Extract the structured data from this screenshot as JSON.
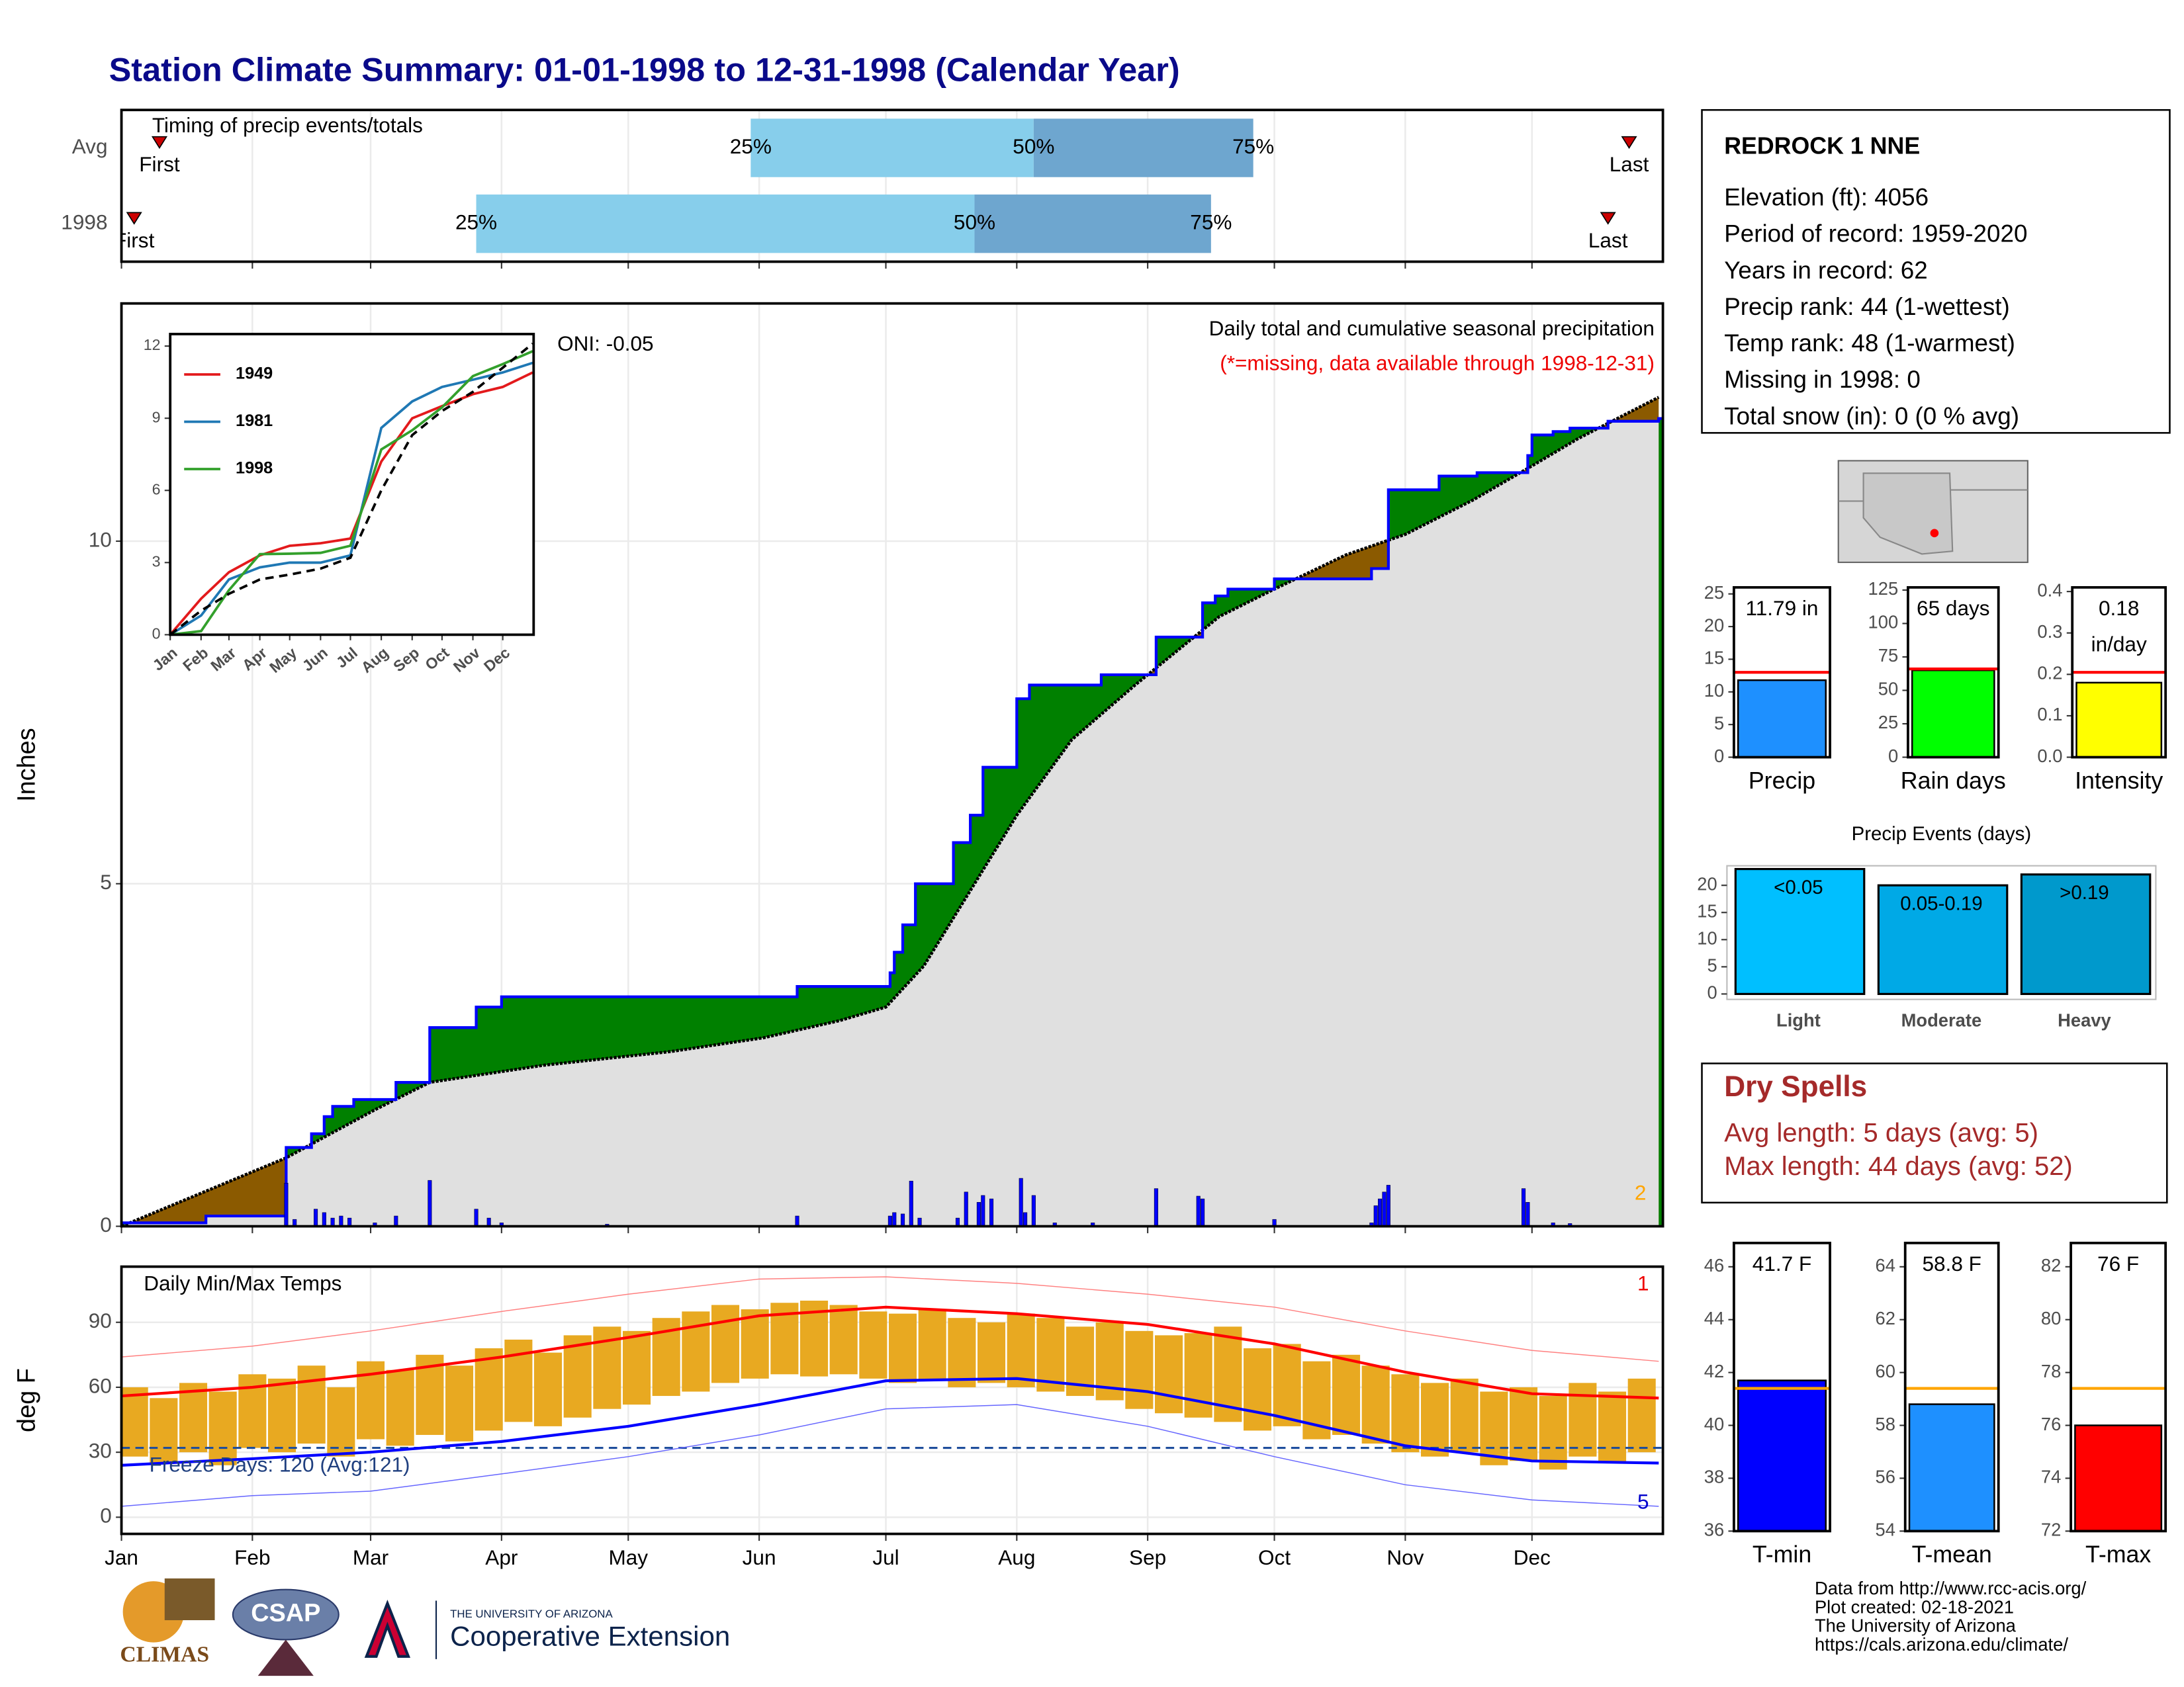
{
  "title": "Station Climate Summary: 01-01-1998 to 12-31-1998 (Calendar Year)",
  "station": {
    "name": "REDROCK 1 NNE",
    "lines": [
      "Elevation (ft): 4056",
      "Period of record: 1959-2020",
      "Years in record: 62",
      "Precip rank: 44 (1-wettest)",
      "Temp rank: 48 (1-warmest)",
      "Missing in 1998: 0",
      "Total snow (in): 0 (0 % avg)"
    ]
  },
  "dry_spells": {
    "title": "Dry Spells",
    "lines": [
      "Avg length: 5 days (avg: 5)",
      "Max length: 44 days (avg: 52)"
    ]
  },
  "footer": {
    "logos": [
      "CLIMAS",
      "CSAP",
      "THE UNIVERSITY OF ARIZONA",
      "Cooperative Extension"
    ],
    "credits": [
      "Data from http://www.rcc-acis.org/",
      "Plot created: 02-18-2021",
      "The University of Arizona",
      "https://cals.arizona.edu/climate/"
    ]
  },
  "chart_data": [
    {
      "type": "timing",
      "label": "Timing of precip events/totals",
      "categories": [
        "Avg",
        "1998"
      ],
      "point_labels": [
        "First",
        "25%",
        "50%",
        "75%",
        "Last"
      ],
      "values": [
        [
          9,
          149,
          216,
          268,
          357
        ],
        [
          3,
          84,
          202,
          258,
          352
        ]
      ],
      "colors": {
        "early": "#87ceeb",
        "late": "#6ea6cf",
        "marker": "#cc0000"
      },
      "xlim": [
        0,
        365
      ],
      "xticks": [
        0,
        31,
        59,
        90,
        120,
        151,
        181,
        212,
        243,
        273,
        304,
        334
      ],
      "grid": true
    },
    {
      "type": "precip",
      "y_label": "Inches",
      "title": "Daily total and cumulative seasonal precipitation",
      "subtitle": "(*=missing, data available through 1998-12-31)",
      "annotation": "ONI: -0.05",
      "corner_label": "2",
      "xlim": [
        0,
        365
      ],
      "xticks": [
        0,
        31,
        59,
        90,
        120,
        151,
        181,
        212,
        243,
        273,
        304,
        334
      ],
      "ylim": [
        0,
        13.47
      ],
      "yticks": [
        0,
        5,
        10
      ],
      "grid": true,
      "series": [
        {
          "color": "#0000ff",
          "step": true,
          "x": [
            0,
            20,
            39,
            45,
            48,
            50,
            55,
            65,
            73,
            84,
            90,
            160,
            182,
            183,
            185,
            188,
            197,
            201,
            204,
            212,
            215,
            232,
            245,
            256,
            259,
            262,
            273,
            296,
            300,
            312,
            321,
            333,
            334,
            339,
            343,
            352,
            364
          ],
          "values": [
            0.05,
            0.15,
            1.15,
            1.35,
            1.6,
            1.75,
            1.85,
            2.1,
            2.9,
            3.2,
            3.35,
            3.5,
            3.7,
            4.0,
            4.4,
            5.0,
            5.6,
            6.0,
            6.7,
            7.7,
            7.9,
            8.05,
            8.6,
            9.1,
            9.2,
            9.3,
            9.45,
            9.6,
            10.75,
            10.95,
            11.0,
            11.25,
            11.55,
            11.6,
            11.65,
            11.75,
            11.79
          ]
        },
        {
          "color": "#000000",
          "x": [
            0,
            39,
            60,
            73,
            100,
            130,
            152,
            170,
            181,
            190,
            200,
            212,
            225,
            240,
            250,
            260,
            273,
            290,
            304,
            320,
            334,
            345,
            364
          ],
          "values": [
            0,
            1.0,
            1.7,
            2.1,
            2.35,
            2.55,
            2.75,
            3.0,
            3.2,
            3.8,
            4.8,
            6.0,
            7.1,
            7.9,
            8.4,
            8.9,
            9.3,
            9.8,
            10.1,
            10.6,
            11.1,
            11.5,
            12.1
          ]
        }
      ],
      "bars": {
        "color": "#0000ff",
        "x": [
          39,
          41,
          46,
          48,
          50,
          52,
          54,
          60,
          65,
          73,
          84,
          87,
          90,
          115,
          160,
          182,
          183,
          185,
          187,
          189,
          198,
          200,
          203,
          204,
          206,
          213,
          214,
          216,
          221,
          230,
          245,
          255,
          256,
          273,
          296,
          297,
          298,
          299,
          300,
          332,
          333,
          339,
          343
        ],
        "values": [
          0.63,
          0.1,
          0.25,
          0.2,
          0.12,
          0.15,
          0.12,
          0.05,
          0.15,
          0.67,
          0.25,
          0.12,
          0.05,
          0.03,
          0.15,
          0.15,
          0.2,
          0.18,
          0.66,
          0.12,
          0.12,
          0.5,
          0.35,
          0.45,
          0.4,
          0.7,
          0.2,
          0.45,
          0.05,
          0.05,
          0.55,
          0.44,
          0.4,
          0.1,
          0.05,
          0.3,
          0.4,
          0.5,
          0.6,
          0.55,
          0.35,
          0.05,
          0.04
        ]
      },
      "fills": {
        "above": "#008000",
        "below": "#8b5a00",
        "base": "#e0e0e0"
      }
    },
    {
      "type": "line",
      "xlim": [
        0,
        365
      ],
      "ylim": [
        0,
        12.5
      ],
      "yticks": [
        0,
        3,
        6,
        9,
        12
      ],
      "xticks": [
        {
          "value": 0,
          "label": "Jan"
        },
        {
          "value": 31,
          "label": "Feb"
        },
        {
          "value": 59,
          "label": "Mar"
        },
        {
          "value": 90,
          "label": "Apr"
        },
        {
          "value": 120,
          "label": "May"
        },
        {
          "value": 151,
          "label": "Jun"
        },
        {
          "value": 181,
          "label": "Jul"
        },
        {
          "value": 212,
          "label": "Aug"
        },
        {
          "value": 243,
          "label": "Sep"
        },
        {
          "value": 273,
          "label": "Oct"
        },
        {
          "value": 304,
          "label": "Nov"
        },
        {
          "value": 334,
          "label": "Dec"
        }
      ],
      "x": [
        0,
        31,
        59,
        90,
        120,
        151,
        181,
        212,
        243,
        273,
        304,
        334,
        364
      ],
      "series": [
        {
          "name": "1949",
          "color": "#e31a1c",
          "values": [
            0,
            1.5,
            2.6,
            3.3,
            3.7,
            3.8,
            4.0,
            7.2,
            9.0,
            9.5,
            10.0,
            10.3,
            10.9
          ]
        },
        {
          "name": "1981",
          "color": "#1f78b4",
          "values": [
            0,
            0.8,
            2.3,
            2.8,
            3.0,
            3.0,
            3.3,
            8.6,
            9.7,
            10.3,
            10.6,
            10.9,
            11.3
          ]
        },
        {
          "name": "1998",
          "color": "#33a02c",
          "values": [
            0,
            0.15,
            1.85,
            3.35,
            3.37,
            3.4,
            3.7,
            7.7,
            8.5,
            9.45,
            10.75,
            11.25,
            11.79
          ]
        },
        {
          "color": "#000000",
          "dash": true,
          "values": [
            0,
            1.0,
            1.7,
            2.3,
            2.5,
            2.75,
            3.2,
            6.0,
            8.3,
            9.3,
            10.1,
            11.1,
            12.1
          ]
        }
      ]
    },
    {
      "type": "temperature",
      "title": "Daily Min/Max Temps",
      "annotation": "Freeze Days: 120 (Avg:121)",
      "y_label": "deg F",
      "record_highs": 1,
      "record_lows": 5,
      "xlim": [
        0,
        365
      ],
      "ylim": [
        -7.7,
        115.7
      ],
      "yticks": [
        0,
        30,
        60,
        90
      ],
      "grid": true,
      "freeze_line": 32,
      "xticks": [
        {
          "value": 0,
          "label": "Jan"
        },
        {
          "value": 31,
          "label": "Feb"
        },
        {
          "value": 59,
          "label": "Mar"
        },
        {
          "value": 90,
          "label": "Apr"
        },
        {
          "value": 120,
          "label": "May"
        },
        {
          "value": 151,
          "label": "Jun"
        },
        {
          "value": 181,
          "label": "Jul"
        },
        {
          "value": 212,
          "label": "Aug"
        },
        {
          "value": 243,
          "label": "Sep"
        },
        {
          "value": 273,
          "label": "Oct"
        },
        {
          "value": 304,
          "label": "Nov"
        },
        {
          "value": 334,
          "label": "Dec"
        }
      ],
      "x": [
        0,
        31,
        59,
        90,
        120,
        151,
        181,
        212,
        243,
        273,
        304,
        334,
        364
      ],
      "series": [
        {
          "color": "#ff0000",
          "width": 2,
          "values": [
            56,
            60,
            66,
            74,
            83,
            93,
            97,
            94,
            89,
            80,
            67,
            57,
            55
          ]
        },
        {
          "color": "#0000ff",
          "width": 2,
          "values": [
            24,
            27,
            30,
            35,
            42,
            52,
            63,
            64,
            58,
            47,
            33,
            26,
            25
          ]
        },
        {
          "color": "#ff8080",
          "width": 0.7,
          "values": [
            74,
            79,
            86,
            95,
            103,
            110,
            111,
            108,
            103,
            97,
            86,
            77,
            72
          ]
        },
        {
          "color": "#6666ff",
          "width": 0.7,
          "values": [
            5,
            10,
            12,
            20,
            28,
            38,
            50,
            52,
            42,
            28,
            15,
            8,
            5
          ]
        }
      ],
      "daily": {
        "color": "#e8a921",
        "x": [
          3,
          10,
          17,
          24,
          31,
          38,
          45,
          52,
          59,
          66,
          73,
          80,
          87,
          94,
          101,
          108,
          115,
          122,
          129,
          136,
          143,
          150,
          157,
          164,
          171,
          178,
          185,
          192,
          199,
          206,
          213,
          220,
          227,
          234,
          241,
          248,
          255,
          262,
          269,
          276,
          283,
          290,
          297,
          304,
          311,
          318,
          325,
          332,
          339,
          346,
          353,
          360
        ],
        "lows": [
          28,
          25,
          30,
          24,
          32,
          30,
          34,
          28,
          36,
          33,
          38,
          35,
          40,
          44,
          42,
          46,
          50,
          52,
          56,
          58,
          62,
          64,
          66,
          65,
          66,
          64,
          62,
          63,
          60,
          62,
          60,
          58,
          56,
          54,
          50,
          48,
          46,
          44,
          40,
          42,
          36,
          38,
          34,
          30,
          28,
          30,
          24,
          26,
          22,
          28,
          25,
          30
        ],
        "highs": [
          60,
          55,
          62,
          58,
          66,
          64,
          70,
          60,
          72,
          68,
          75,
          70,
          78,
          82,
          76,
          84,
          88,
          86,
          92,
          95,
          98,
          96,
          99,
          100,
          98,
          95,
          94,
          96,
          92,
          90,
          94,
          92,
          88,
          90,
          86,
          84,
          85,
          88,
          78,
          80,
          72,
          75,
          70,
          66,
          62,
          64,
          58,
          60,
          56,
          62,
          58,
          64
        ]
      }
    },
    {
      "type": "bar",
      "categories": [
        "Precip"
      ],
      "values": [
        11.79
      ],
      "value_labels": [
        "11.79 in"
      ],
      "average": 13.0,
      "color": "#1e90ff",
      "average_color": "#ff0000",
      "ylim": [
        0,
        26
      ],
      "yticks": [
        0,
        5,
        10,
        15,
        20,
        25
      ]
    },
    {
      "type": "bar",
      "categories": [
        "Rain days"
      ],
      "values": [
        65
      ],
      "value_labels": [
        "65 days"
      ],
      "average": 66,
      "color": "#00ff00",
      "average_color": "#ff0000",
      "ylim": [
        0,
        127
      ],
      "yticks": [
        0,
        25,
        50,
        75,
        100,
        125
      ]
    },
    {
      "type": "bar",
      "categories": [
        "Intensity"
      ],
      "values": [
        0.18
      ],
      "value_labels": [
        "0.18"
      ],
      "unit": "in/day",
      "average": 0.205,
      "color": "#ffff00",
      "average_color": "#ff0000",
      "ylim": [
        0,
        0.41
      ],
      "yticks": [
        {
          "value": 0,
          "label": "0.0"
        },
        0.1,
        0.2,
        0.3,
        0.4
      ]
    },
    {
      "type": "bar",
      "title": "Precip Events (days)",
      "categories": [
        "Light",
        "Moderate",
        "Heavy"
      ],
      "category_ranges": [
        "<0.05",
        "0.05-0.19",
        ">0.19"
      ],
      "values": [
        23,
        20,
        22
      ],
      "colors": [
        "#00bfff",
        "#00a9e6",
        "#0099cc"
      ],
      "ylim": [
        -1,
        23.6
      ],
      "yticks": [
        0,
        5,
        10,
        15,
        20
      ]
    },
    {
      "type": "bar",
      "categories": [
        "T-min"
      ],
      "values": [
        41.7
      ],
      "value_labels": [
        "41.7 F"
      ],
      "average": 41.4,
      "color": "#0000ff",
      "average_color": "#ffa500",
      "ylim": [
        36,
        46.9
      ],
      "yticks": [
        36,
        38,
        40,
        42,
        44,
        46
      ]
    },
    {
      "type": "bar",
      "categories": [
        "T-mean"
      ],
      "values": [
        58.8
      ],
      "value_labels": [
        "58.8 F"
      ],
      "average": 59.4,
      "color": "#1e90ff",
      "average_color": "#ffa500",
      "ylim": [
        54,
        64.9
      ],
      "yticks": [
        54,
        56,
        58,
        60,
        62,
        64
      ]
    },
    {
      "type": "bar",
      "categories": [
        "T-max"
      ],
      "values": [
        76
      ],
      "value_labels": [
        "76 F"
      ],
      "average": 77.4,
      "color": "#ff0000",
      "average_color": "#ffa500",
      "ylim": [
        72,
        82.9
      ],
      "yticks": [
        72,
        74,
        76,
        78,
        80,
        82
      ]
    }
  ]
}
